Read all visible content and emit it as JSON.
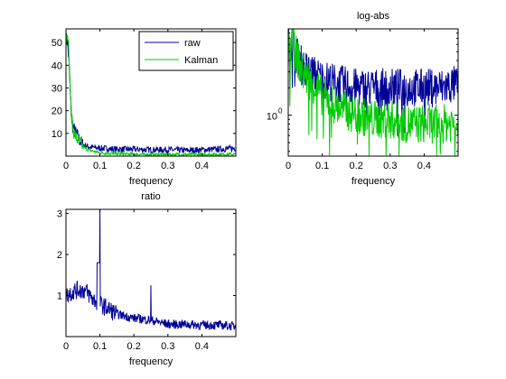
{
  "chart_data": [
    {
      "type": "line",
      "title": "",
      "xlabel": "frequency",
      "ylabel": "",
      "xlim": [
        0,
        0.5
      ],
      "ylim": [
        0,
        56
      ],
      "xticks": [
        "0",
        "0.1",
        "0.2",
        "0.3",
        "0.4"
      ],
      "yticks": [
        "10",
        "20",
        "30",
        "40",
        "50"
      ],
      "legend": {
        "placement": "top-right",
        "entries": [
          "raw",
          "Kalman"
        ]
      },
      "series": [
        {
          "name": "raw",
          "color": "#000099",
          "x": [
            0,
            0.005,
            0.01,
            0.015,
            0.02,
            0.03,
            0.04,
            0.05,
            0.07,
            0.1,
            0.15,
            0.2,
            0.25,
            0.3,
            0.35,
            0.4,
            0.45,
            0.5
          ],
          "values": [
            52,
            50,
            38,
            20,
            13,
            10,
            7,
            5,
            4,
            3.5,
            3,
            3,
            2.8,
            2.8,
            2.5,
            2.8,
            3,
            3.5
          ]
        },
        {
          "name": "Kalman",
          "color": "#00cc00",
          "x": [
            0,
            0.005,
            0.01,
            0.015,
            0.02,
            0.03,
            0.04,
            0.05,
            0.07,
            0.1,
            0.15,
            0.2,
            0.25,
            0.3,
            0.35,
            0.4,
            0.45,
            0.5
          ],
          "values": [
            50,
            56,
            40,
            20,
            12,
            8,
            6,
            4,
            2.5,
            1.5,
            1,
            0.8,
            0.7,
            0.7,
            0.7,
            0.7,
            0.8,
            0.8
          ]
        }
      ]
    },
    {
      "type": "line",
      "title": "log-abs",
      "xlabel": "frequency",
      "ylabel": "",
      "yscale": "log",
      "xlim": [
        0,
        0.5
      ],
      "xticks": [
        "0",
        "0.1",
        "0.2",
        "0.3",
        "0.4"
      ],
      "ytick_label": "10",
      "ytick_exponent": "0",
      "series": [
        {
          "name": "raw",
          "color": "#000099",
          "x": [
            0,
            0.01,
            0.02,
            0.04,
            0.06,
            0.1,
            0.15,
            0.2,
            0.25,
            0.3,
            0.35,
            0.4,
            0.45,
            0.5
          ],
          "values": [
            5.5,
            7,
            5,
            3.5,
            3,
            2.5,
            2.2,
            2,
            2,
            2,
            2,
            2,
            2,
            2.2
          ]
        },
        {
          "name": "Kalman",
          "color": "#00cc00",
          "x": [
            0,
            0.01,
            0.02,
            0.04,
            0.06,
            0.1,
            0.15,
            0.2,
            0.25,
            0.3,
            0.35,
            0.4,
            0.45,
            0.5
          ],
          "values": [
            5,
            7.5,
            5,
            3,
            2.5,
            1.6,
            1.2,
            1,
            0.9,
            0.9,
            0.8,
            0.8,
            0.8,
            0.85
          ]
        }
      ]
    },
    {
      "type": "line",
      "title": "ratio",
      "xlabel": "frequency",
      "ylabel": "",
      "xlim": [
        0,
        0.5
      ],
      "ylim": [
        0,
        3.1
      ],
      "xticks": [
        "0",
        "0.1",
        "0.2",
        "0.3",
        "0.4"
      ],
      "yticks": [
        "1",
        "2",
        "3"
      ],
      "series": [
        {
          "name": "",
          "color": "#000099",
          "x": [
            0,
            0.01,
            0.02,
            0.04,
            0.06,
            0.08,
            0.1,
            0.12,
            0.15,
            0.2,
            0.25,
            0.3,
            0.35,
            0.4,
            0.45,
            0.5
          ],
          "values": [
            1.0,
            1.05,
            1.1,
            1.15,
            1.1,
            0.9,
            0.8,
            0.7,
            0.55,
            0.45,
            0.4,
            0.3,
            0.3,
            0.28,
            0.28,
            0.25
          ]
        }
      ],
      "spikes": [
        {
          "x": 0.1,
          "value": 3.1
        },
        {
          "x": 0.25,
          "value": 1.25
        }
      ]
    }
  ]
}
